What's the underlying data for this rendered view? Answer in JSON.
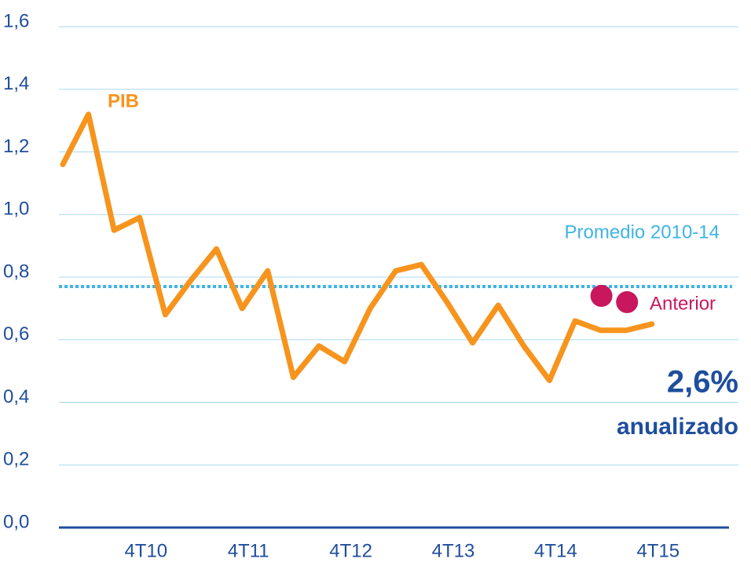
{
  "chart_data": {
    "type": "line",
    "categories": [
      null,
      null,
      null,
      "4T10",
      null,
      null,
      null,
      "4T11",
      null,
      null,
      null,
      "4T12",
      null,
      null,
      null,
      "4T13",
      null,
      null,
      null,
      "4T14",
      null,
      null,
      null,
      "4T15"
    ],
    "series": [
      {
        "name": "PIB",
        "color": "#f7941d",
        "values": [
          1.16,
          1.32,
          0.95,
          0.99,
          0.68,
          0.79,
          0.89,
          0.7,
          0.82,
          0.48,
          0.58,
          0.53,
          0.7,
          0.82,
          0.84,
          0.72,
          0.59,
          0.71,
          0.58,
          0.47,
          0.66,
          0.63,
          0.63,
          0.65
        ]
      }
    ],
    "reference_line": {
      "name": "Promedio 2010-14",
      "value": 0.77,
      "color": "#3fb4e5"
    },
    "previous": {
      "name": "Anterior",
      "color": "#c8175d",
      "points": [
        {
          "index": 21,
          "value": 0.74
        },
        {
          "index": 22,
          "value": 0.72
        }
      ]
    },
    "annotations": [
      "2,6%",
      "anualizado"
    ],
    "ylim": [
      0,
      1.6
    ],
    "yticks": [
      {
        "value": 0,
        "label": "0,0"
      },
      {
        "value": 0.2,
        "label": "0,2"
      },
      {
        "value": 0.4,
        "label": "0,4"
      },
      {
        "value": 0.6,
        "label": "0,6"
      },
      {
        "value": 0.8,
        "label": "0,8"
      },
      {
        "value": 1.0,
        "label": "1,0"
      },
      {
        "value": 1.2,
        "label": "1,2"
      },
      {
        "value": 1.4,
        "label": "1,4"
      },
      {
        "value": 1.6,
        "label": "1,6"
      }
    ],
    "grid": true
  }
}
